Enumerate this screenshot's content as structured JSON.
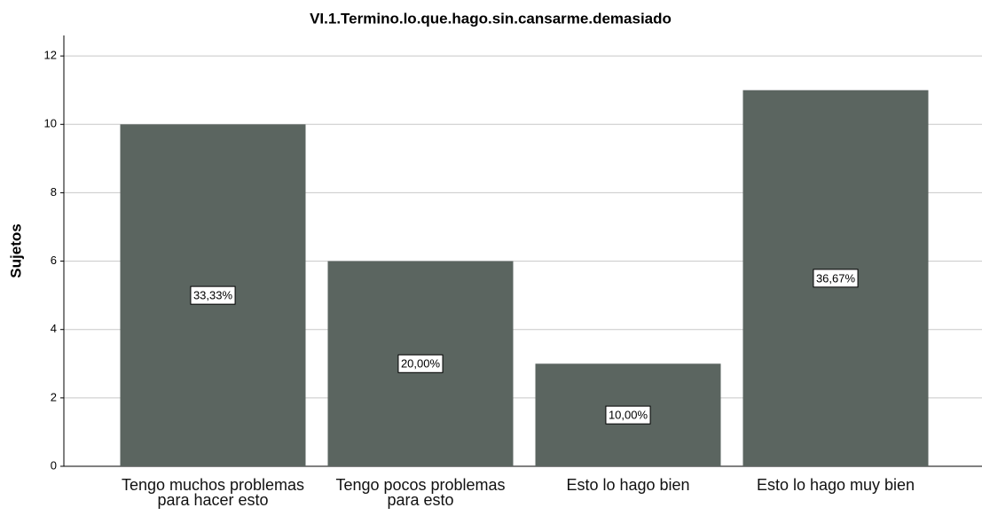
{
  "chart_data": {
    "type": "bar",
    "title": "VI.1.Termino.lo.que.hago.sin.cansarme.demasiado",
    "y_label": "Sujetos",
    "categories": [
      "Tengo muchos problemas para hacer esto",
      "Tengo pocos problemas para esto",
      "Esto lo hago bien",
      "Esto lo hago muy bien"
    ],
    "values": [
      10,
      6,
      3,
      11
    ],
    "percentages": [
      33.33,
      20,
      10,
      36.67
    ],
    "percentage_labels": [
      "33,33%",
      "20,00%",
      "10,00%",
      "36,67%"
    ],
    "color": "#5b6560",
    "ylim": [
      0,
      12.6
    ],
    "yticks": [
      0,
      2,
      4,
      6,
      8,
      10,
      12
    ],
    "grid": true
  }
}
